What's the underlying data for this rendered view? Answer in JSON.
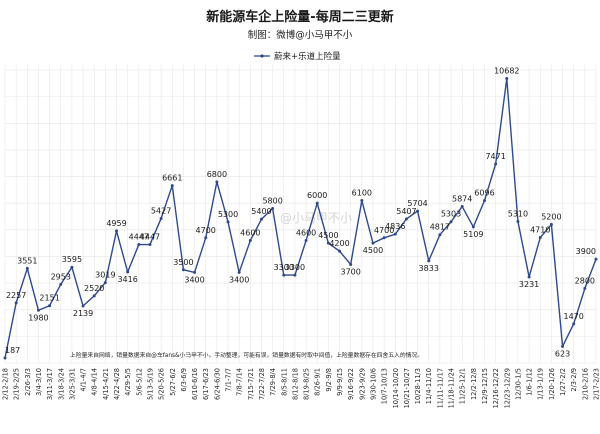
{
  "chart_data": {
    "type": "line",
    "title": "新能源车企上险量-每周二三更新",
    "subtitle": "制图：微博@小马甲不小",
    "legend": [
      "蔚来+乐道上险量"
    ],
    "legend_position": "top-center",
    "grid": true,
    "note": "上险量来自网络，销量数据来自@车fans&小马甲不小，手动整理，可能有误，销量数据有时取中间值，上险量数据存在四舍五入的情况。",
    "watermark": "@小马甲不小",
    "colors": {
      "line": "#2f4a8c",
      "grid": "#e6e6e6"
    },
    "ylim": [
      0,
      11000
    ],
    "categories": [
      "2/12-2/18",
      "2/19-2/25",
      "2/26-3/3",
      "3/4-3/10",
      "3/11-3/17",
      "3/18-3/24",
      "3/25-3/31",
      "4/1-4/7",
      "4/8-4/14",
      "4/15-4/21",
      "4/22-4/28",
      "4/29-5/5",
      "5/6-5/12",
      "5/13-5/19",
      "5/20-5/26",
      "5/27-6/2",
      "6/3-6/9",
      "6/10-6/16",
      "6/17-6/23",
      "6/24-6/30",
      "7/1-7/7",
      "7/8-7/14",
      "7/15-7/21",
      "7/22-7/28",
      "7/29-8/4",
      "8/5-8/11",
      "8/12-8/18",
      "8/19-8/25",
      "8/26-9/1",
      "9/2-9/8",
      "9/9-9/15",
      "9/16-9/22",
      "9/23-9/29",
      "9/30-10/6",
      "10/7-10/13",
      "10/14-10/20",
      "10/21-10/27",
      "10/28-11/3",
      "11/4-11/10",
      "11/11-11/17",
      "11/18-11/24",
      "11/25-12/1",
      "12/2-12/8",
      "12/9-12/15",
      "12/16-12/22",
      "12/23-12/29",
      "12/30-1/5",
      "1/6-1/12",
      "1/13-1/19",
      "1/20-1/26",
      "1/27-2/2",
      "2/3-2/9",
      "2/10-2/16",
      "2/17-2/23"
    ],
    "series": [
      {
        "name": "蔚来+乐道上险量",
        "values": [
          187,
          2257,
          3551,
          1980,
          2151,
          2953,
          3595,
          2139,
          2520,
          3019,
          4959,
          3416,
          4447,
          4447,
          5427,
          6661,
          3500,
          3400,
          4700,
          6800,
          5300,
          3400,
          4600,
          5400,
          5800,
          3300,
          3300,
          4600,
          6000,
          4500,
          4200,
          3700,
          6100,
          4500,
          4700,
          4836,
          5407,
          5704,
          3833,
          4817,
          5303,
          5874,
          5109,
          6096,
          7471,
          10682,
          5310,
          3231,
          4710,
          5200,
          623,
          1470,
          2800,
          3900
        ],
        "value_labels": [
          "187",
          "2257",
          "3551",
          "1980",
          "2151",
          "2953",
          "3595",
          "2139",
          "2520",
          "3019",
          "4959",
          "3416",
          "4447",
          "4447",
          "5427",
          "6661",
          "3500",
          "3400",
          "4700",
          "6800",
          "5300",
          "3400",
          "4600",
          "5400",
          "5800",
          "3300",
          "3300",
          "4600",
          "6000",
          "4500",
          "4200",
          "3700",
          "6100",
          "4500",
          "4700",
          "4836",
          "5407",
          "5704",
          "3833",
          "4817",
          "5303",
          "5874",
          "5109",
          "6096",
          "7471",
          "10682",
          "5310",
          "3231",
          "4710",
          "5200",
          "623",
          "1470",
          "2800",
          "3900"
        ]
      }
    ]
  }
}
